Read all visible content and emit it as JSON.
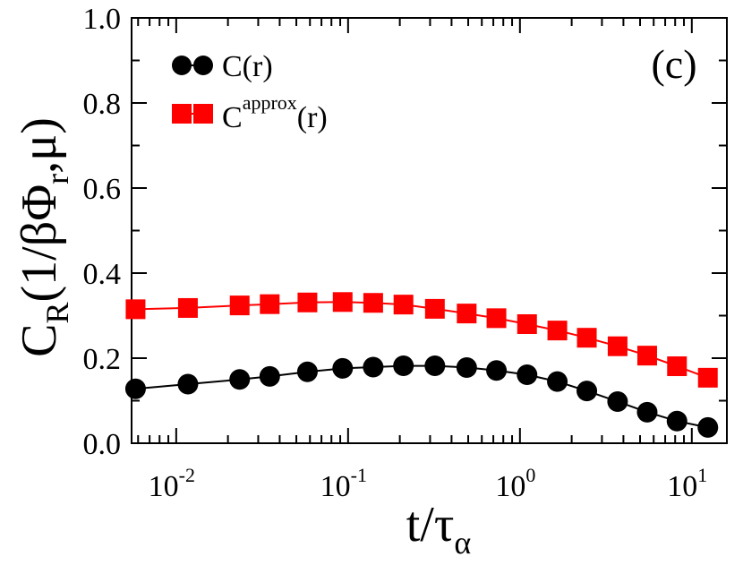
{
  "chart_data": {
    "type": "scatter",
    "panel_label": "(c)",
    "xscale": "log",
    "xlim": [
      0.0055,
      16
    ],
    "ylim": [
      0.0,
      1.0
    ],
    "xlabel": {
      "base": "t/τ",
      "sub": "α"
    },
    "ylabel": {
      "base": "C",
      "sub1": "R",
      "mid": "(1/βΦ",
      "sub2": "r",
      "tail": ",μ)"
    },
    "x_ticks": [
      {
        "value": 0.01,
        "base": "10",
        "exp": "-2"
      },
      {
        "value": 0.1,
        "base": "10",
        "exp": "-1"
      },
      {
        "value": 1,
        "base": "10",
        "exp": "0"
      },
      {
        "value": 10,
        "base": "10",
        "exp": "1"
      }
    ],
    "y_ticks": [
      {
        "value": 0.0,
        "label": "0.0"
      },
      {
        "value": 0.2,
        "label": "0.2"
      },
      {
        "value": 0.4,
        "label": "0.4"
      },
      {
        "value": 0.6,
        "label": "0.6"
      },
      {
        "value": 0.8,
        "label": "0.8"
      },
      {
        "value": 1.0,
        "label": "1.0"
      }
    ],
    "series": [
      {
        "name": "C(r)",
        "legend_base": "C(r)",
        "legend_sup": "",
        "legend_tail": "",
        "marker": "circle",
        "color": "#000000",
        "x": [
          0.0058,
          0.0117,
          0.0234,
          0.035,
          0.058,
          0.093,
          0.14,
          0.21,
          0.32,
          0.49,
          0.73,
          1.1,
          1.65,
          2.45,
          3.7,
          5.5,
          8.2,
          12.4
        ],
        "y": [
          0.128,
          0.139,
          0.15,
          0.157,
          0.168,
          0.176,
          0.179,
          0.182,
          0.182,
          0.178,
          0.171,
          0.161,
          0.145,
          0.123,
          0.098,
          0.073,
          0.052,
          0.037
        ]
      },
      {
        "name": "C^approx(r)",
        "legend_base": "C",
        "legend_sup": "approx",
        "legend_tail": "(r)",
        "marker": "square",
        "color": "#ff0000",
        "x": [
          0.0058,
          0.0117,
          0.0234,
          0.035,
          0.058,
          0.093,
          0.14,
          0.21,
          0.32,
          0.49,
          0.73,
          1.1,
          1.65,
          2.45,
          3.7,
          5.5,
          8.2,
          12.4
        ],
        "y": [
          0.315,
          0.318,
          0.324,
          0.327,
          0.331,
          0.332,
          0.33,
          0.326,
          0.316,
          0.305,
          0.294,
          0.28,
          0.265,
          0.248,
          0.228,
          0.206,
          0.181,
          0.154
        ]
      }
    ]
  }
}
